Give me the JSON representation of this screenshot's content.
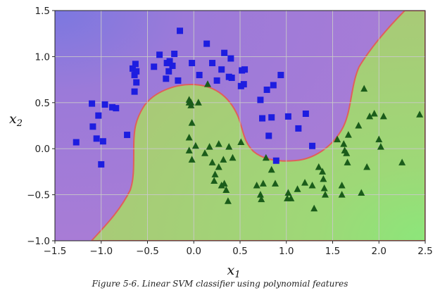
{
  "chart_data": {
    "type": "scatter",
    "xlabel_main": "x",
    "xlabel_sub": "1",
    "ylabel_main": "x",
    "ylabel_sub": "2",
    "xlim": [
      -1.5,
      2.5
    ],
    "ylim": [
      -1.0,
      1.5
    ],
    "xticks": [
      -1.5,
      -1.0,
      -0.5,
      0.0,
      0.5,
      1.0,
      1.5,
      2.0,
      2.5
    ],
    "xtick_labels": [
      "−1.5",
      "−1.0",
      "−0.5",
      "0.0",
      "0.5",
      "1.0",
      "1.5",
      "2.0",
      "2.5"
    ],
    "yticks": [
      -1.0,
      -0.5,
      0.0,
      0.5,
      1.0,
      1.5
    ],
    "ytick_labels": [
      "−1.0",
      "−0.5",
      "0.0",
      "0.5",
      "1.0",
      "1.5"
    ],
    "grid": true,
    "region_colors": {
      "class0": "#a47bd8",
      "class1": "#a9ca76",
      "boundary": "#e0605a",
      "far_class0": "#7b78e0",
      "far_class1": "#8de67a"
    },
    "series": [
      {
        "marker": "square",
        "color": "#1d1de0",
        "points": [
          [
            -1.27,
            0.07
          ],
          [
            -1.1,
            0.49
          ],
          [
            -1.09,
            0.24
          ],
          [
            -1.05,
            0.11
          ],
          [
            -1.03,
            0.36
          ],
          [
            -1.0,
            -0.17
          ],
          [
            -0.98,
            0.08
          ],
          [
            -0.96,
            0.48
          ],
          [
            -0.88,
            0.45
          ],
          [
            -0.84,
            0.44
          ],
          [
            -0.72,
            0.15
          ],
          [
            -0.66,
            0.87
          ],
          [
            -0.64,
            0.8
          ],
          [
            -0.64,
            0.62
          ],
          [
            -0.63,
            0.92
          ],
          [
            -0.62,
            0.84
          ],
          [
            -0.62,
            0.72
          ],
          [
            -0.43,
            0.89
          ],
          [
            -0.37,
            1.02
          ],
          [
            -0.3,
            0.76
          ],
          [
            -0.29,
            0.93
          ],
          [
            -0.27,
            0.84
          ],
          [
            -0.26,
            0.95
          ],
          [
            -0.23,
            0.9
          ],
          [
            -0.21,
            1.03
          ],
          [
            -0.17,
            0.74
          ],
          [
            -0.15,
            1.28
          ],
          [
            -0.02,
            0.93
          ],
          [
            0.06,
            0.8
          ],
          [
            0.14,
            1.14
          ],
          [
            0.2,
            0.93
          ],
          [
            0.25,
            0.74
          ],
          [
            0.3,
            0.86
          ],
          [
            0.33,
            1.04
          ],
          [
            0.38,
            0.78
          ],
          [
            0.4,
            0.98
          ],
          [
            0.41,
            0.77
          ],
          [
            0.51,
            0.68
          ],
          [
            0.52,
            0.85
          ],
          [
            0.54,
            0.7
          ],
          [
            0.55,
            0.86
          ],
          [
            0.72,
            0.53
          ],
          [
            0.74,
            0.33
          ],
          [
            0.79,
            0.64
          ],
          [
            0.81,
            0.14
          ],
          [
            0.84,
            0.34
          ],
          [
            0.86,
            0.69
          ],
          [
            0.89,
            -0.13
          ],
          [
            0.94,
            0.8
          ],
          [
            1.02,
            0.35
          ],
          [
            1.13,
            0.22
          ],
          [
            1.21,
            0.38
          ],
          [
            1.28,
            0.03
          ]
        ]
      },
      {
        "marker": "triangle",
        "color": "#1a5c1a",
        "points": [
          [
            -0.05,
            0.53
          ],
          [
            -0.03,
            0.5
          ],
          [
            -0.05,
            0.5
          ],
          [
            -0.03,
            0.47
          ],
          [
            0.15,
            0.7
          ],
          [
            -0.05,
            0.12
          ],
          [
            -0.05,
            -0.02
          ],
          [
            -0.02,
            0.28
          ],
          [
            -0.02,
            -0.12
          ],
          [
            0.05,
            0.5
          ],
          [
            0.02,
            0.03
          ],
          [
            0.12,
            -0.05
          ],
          [
            0.17,
            0.02
          ],
          [
            0.2,
            -0.15
          ],
          [
            0.22,
            -0.35
          ],
          [
            0.23,
            -0.28
          ],
          [
            0.27,
            0.05
          ],
          [
            0.27,
            -0.2
          ],
          [
            0.3,
            -0.4
          ],
          [
            0.32,
            -0.12
          ],
          [
            0.33,
            -0.38
          ],
          [
            0.35,
            -0.45
          ],
          [
            0.37,
            -0.57
          ],
          [
            0.38,
            0.02
          ],
          [
            0.42,
            -0.1
          ],
          [
            0.51,
            0.07
          ],
          [
            0.68,
            -0.4
          ],
          [
            0.72,
            -0.5
          ],
          [
            0.73,
            -0.55
          ],
          [
            0.75,
            -0.38
          ],
          [
            0.78,
            -0.1
          ],
          [
            0.84,
            -0.23
          ],
          [
            0.88,
            -0.38
          ],
          [
            1.01,
            -0.54
          ],
          [
            1.02,
            -0.48
          ],
          [
            1.05,
            -0.54
          ],
          [
            1.12,
            -0.44
          ],
          [
            1.2,
            -0.37
          ],
          [
            1.28,
            -0.4
          ],
          [
            1.3,
            -0.65
          ],
          [
            1.35,
            -0.2
          ],
          [
            1.39,
            -0.25
          ],
          [
            1.4,
            -0.33
          ],
          [
            1.41,
            -0.43
          ],
          [
            1.42,
            -0.5
          ],
          [
            1.55,
            0.1
          ],
          [
            1.6,
            -0.4
          ],
          [
            1.6,
            -0.5
          ],
          [
            1.62,
            0.05
          ],
          [
            1.63,
            -0.02
          ],
          [
            1.65,
            -0.05
          ],
          [
            1.66,
            -0.15
          ],
          [
            1.67,
            0.15
          ],
          [
            1.78,
            0.25
          ],
          [
            1.84,
            0.65
          ],
          [
            1.87,
            -0.2
          ],
          [
            1.9,
            0.35
          ],
          [
            1.95,
            0.38
          ],
          [
            2.0,
            0.1
          ],
          [
            2.02,
            0.02
          ],
          [
            2.05,
            0.35
          ],
          [
            2.25,
            -0.15
          ],
          [
            2.44,
            0.37
          ],
          [
            1.81,
            -0.48
          ]
        ]
      }
    ]
  },
  "caption": "Figure 5-6. Linear SVM classifier using polynomial features"
}
